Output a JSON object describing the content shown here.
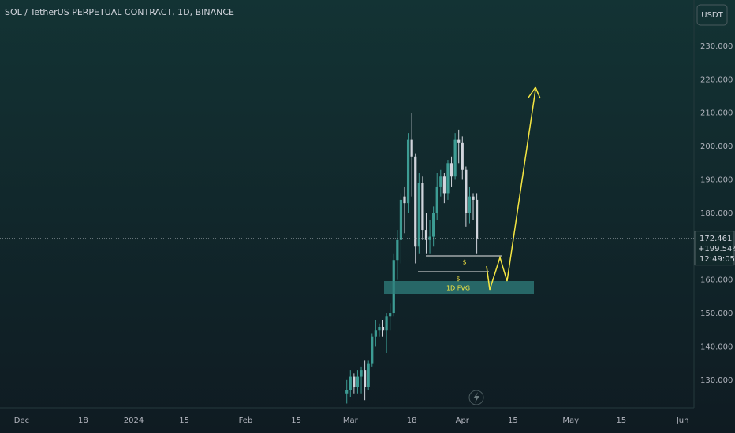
{
  "chart_data": {
    "type": "candlestick",
    "title": "SOL / TetherUS PERPETUAL CONTRACT, 1D, BINANCE",
    "currency": "USDT",
    "x": [
      "2024-02-29",
      "2024-03-01",
      "2024-03-02",
      "2024-03-03",
      "2024-03-04",
      "2024-03-05",
      "2024-03-06",
      "2024-03-07",
      "2024-03-08",
      "2024-03-09",
      "2024-03-10",
      "2024-03-11",
      "2024-03-12",
      "2024-03-13",
      "2024-03-14",
      "2024-03-15",
      "2024-03-16",
      "2024-03-17",
      "2024-03-18",
      "2024-03-19",
      "2024-03-20",
      "2024-03-21",
      "2024-03-22",
      "2024-03-23",
      "2024-03-24",
      "2024-03-25",
      "2024-03-26",
      "2024-03-27",
      "2024-03-28",
      "2024-03-29",
      "2024-03-30",
      "2024-03-31",
      "2024-04-01",
      "2024-04-02",
      "2024-04-03",
      "2024-04-04",
      "2024-04-05"
    ],
    "open": [
      126,
      127,
      131,
      128,
      131,
      133,
      128,
      135,
      143,
      145,
      146,
      145,
      149,
      150,
      166,
      172,
      185,
      183,
      202,
      197,
      170,
      189,
      175,
      172,
      173,
      180,
      188,
      191,
      186,
      195,
      191,
      202,
      201,
      193,
      180,
      185,
      184
    ],
    "high": [
      130,
      133,
      132,
      133,
      134,
      136,
      136,
      144,
      148,
      147,
      148,
      150,
      153,
      168,
      175,
      186,
      188,
      204,
      210,
      198,
      192,
      191,
      180,
      178,
      182,
      192,
      193,
      192,
      196,
      197,
      204,
      205,
      203,
      194,
      188,
      186,
      186
    ],
    "low": [
      123,
      125,
      126,
      126,
      126,
      124,
      127,
      134,
      140,
      143,
      143,
      138,
      145,
      149,
      160,
      165,
      174,
      180,
      185,
      165,
      168,
      172,
      168,
      168,
      170,
      178,
      185,
      183,
      184,
      188,
      190,
      195,
      190,
      176,
      177,
      178,
      168
    ],
    "close": [
      127,
      131,
      128,
      131,
      133,
      128,
      135,
      143,
      145,
      146,
      145,
      149,
      150,
      166,
      172,
      184,
      183,
      202,
      197,
      170,
      189,
      175,
      172,
      173,
      180,
      188,
      191,
      186,
      195,
      191,
      202,
      201,
      193,
      180,
      185,
      184,
      172.461
    ],
    "up_color": "#3d9c94",
    "down_color": "#d1d4dc",
    "xlim": [
      "2023-11-25",
      "2024-06-05"
    ],
    "xticks": [
      {
        "value": "2023-12-01",
        "label": "Dec"
      },
      {
        "value": "2023-12-18",
        "label": "18"
      },
      {
        "value": "2024-01-01",
        "label": "2024"
      },
      {
        "value": "2024-01-15",
        "label": "15"
      },
      {
        "value": "2024-02-01",
        "label": "Feb"
      },
      {
        "value": "2024-02-15",
        "label": "15"
      },
      {
        "value": "2024-03-01",
        "label": "Mar"
      },
      {
        "value": "2024-03-18",
        "label": "18"
      },
      {
        "value": "2024-04-01",
        "label": "Apr"
      },
      {
        "value": "2024-04-15",
        "label": "15"
      },
      {
        "value": "2024-05-01",
        "label": "May"
      },
      {
        "value": "2024-05-15",
        "label": "15"
      },
      {
        "value": "2024-06-01",
        "label": "Jun"
      }
    ],
    "ylim": [
      121.7,
      243.9
    ],
    "yticks": [
      {
        "value": 130,
        "label": "130.000"
      },
      {
        "value": 140,
        "label": "140.000"
      },
      {
        "value": 150,
        "label": "150.000"
      },
      {
        "value": 160,
        "label": "160.000"
      },
      {
        "value": 170,
        "label": "170.000"
      },
      {
        "value": 180,
        "label": "180.000"
      },
      {
        "value": 190,
        "label": "190.000"
      },
      {
        "value": 200,
        "label": "200.000"
      },
      {
        "value": 210,
        "label": "210.000"
      },
      {
        "value": 220,
        "label": "220.000"
      },
      {
        "value": 230,
        "label": "230.000"
      }
    ],
    "last_price": {
      "value": 172.461,
      "label": "172.461"
    },
    "change": "+199.54%",
    "countdown": "12:49:05",
    "annotations": [
      "$",
      "$",
      "1D FVG"
    ]
  }
}
